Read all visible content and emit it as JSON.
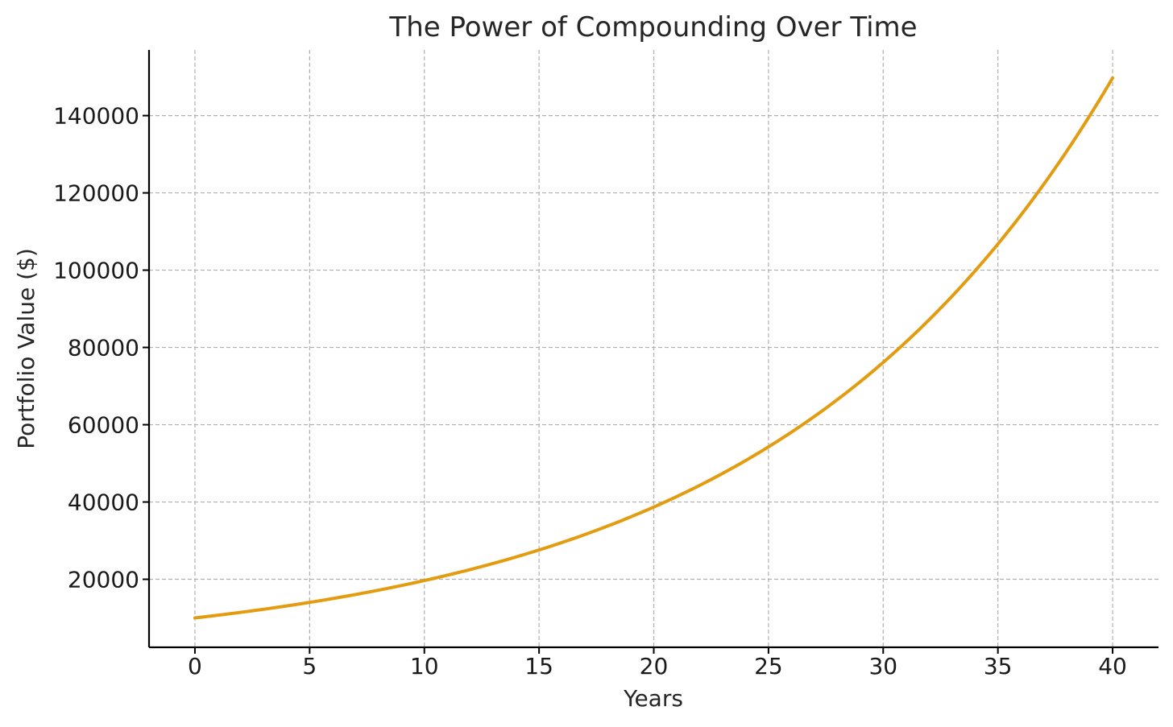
{
  "chart_data": {
    "type": "line",
    "title": "The Power of Compounding Over Time",
    "xlabel": "Years",
    "ylabel": "Portfolio Value ($)",
    "xlim": [
      -2,
      42
    ],
    "ylim": [
      2400,
      157000
    ],
    "xticks": [
      0,
      5,
      10,
      15,
      20,
      25,
      30,
      35,
      40
    ],
    "yticks": [
      20000,
      40000,
      60000,
      80000,
      100000,
      120000,
      140000
    ],
    "xtick_labels": [
      "0",
      "5",
      "10",
      "15",
      "20",
      "25",
      "30",
      "35",
      "40"
    ],
    "ytick_labels": [
      "20000",
      "40000",
      "60000",
      "80000",
      "100000",
      "120000",
      "140000"
    ],
    "grid": true,
    "series": [
      {
        "color": "#E39C0F",
        "x": [
          0,
          5,
          10,
          15,
          20,
          25,
          30,
          35,
          40
        ],
        "y": [
          10000,
          14025,
          19672,
          27590,
          38697,
          54274,
          76123,
          106766,
          149745
        ]
      }
    ]
  }
}
